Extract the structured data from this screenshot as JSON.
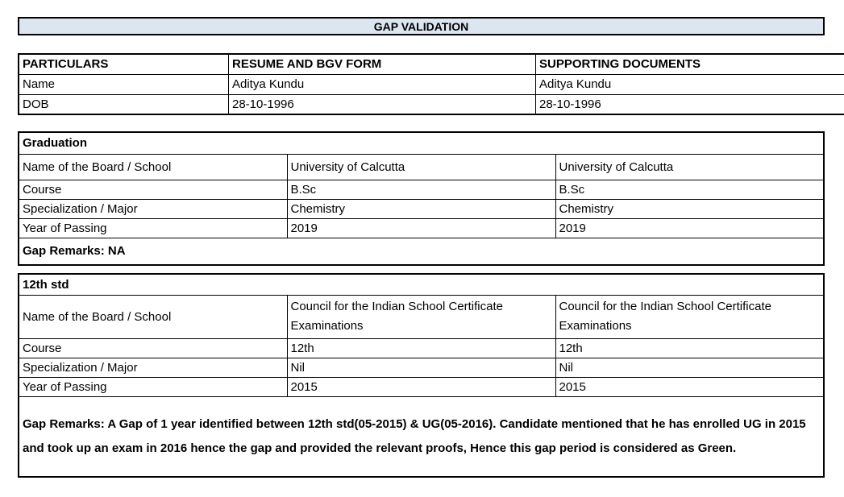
{
  "title": "GAP VALIDATION",
  "colors": {
    "header_fill": "#dce6f1",
    "cell_fill": "#ffffff",
    "border": "#000000",
    "text": "#000000"
  },
  "particulars_table": {
    "columns": [
      "PARTICULARS",
      "RESUME AND BGV FORM",
      "SUPPORTING DOCUMENTS"
    ],
    "rows": [
      {
        "label": "Name",
        "resume": "Aditya Kundu",
        "supporting": "Aditya Kundu"
      },
      {
        "label": "DOB",
        "resume": "28-10-1996",
        "supporting": "28-10-1996"
      }
    ]
  },
  "graduation_table": {
    "section_title": "Graduation",
    "rows": [
      {
        "label": "Name of the Board / School",
        "resume": "University of Calcutta",
        "supporting": "University of Calcutta"
      },
      {
        "label": "Course",
        "resume": "B.Sc",
        "supporting": "B.Sc"
      },
      {
        "label": "Specialization / Major",
        "resume": "Chemistry",
        "supporting": "Chemistry"
      },
      {
        "label": "Year of Passing",
        "resume": "2019",
        "supporting": "2019"
      }
    ],
    "gap_remarks": "Gap Remarks: NA"
  },
  "twelfth_table": {
    "section_title": "12th std",
    "rows": [
      {
        "label": "Name of the Board / School",
        "resume": "Council for the Indian School Certificate Examinations",
        "supporting": "Council for the Indian School Certificate Examinations"
      },
      {
        "label": "Course",
        "resume": "12th",
        "supporting": "12th"
      },
      {
        "label": "Specialization / Major",
        "resume": "Nil",
        "supporting": "Nil"
      },
      {
        "label": "Year of Passing",
        "resume": "2015",
        "supporting": "2015"
      }
    ],
    "gap_remarks": "Gap Remarks: A Gap of 1 year identified between 12th std(05-2015) & UG(05-2016). Candidate mentioned that he has enrolled UG in 2015 and took up an exam in 2016 hence the gap and provided the relevant proofs, Hence this gap period is considered as Green."
  }
}
